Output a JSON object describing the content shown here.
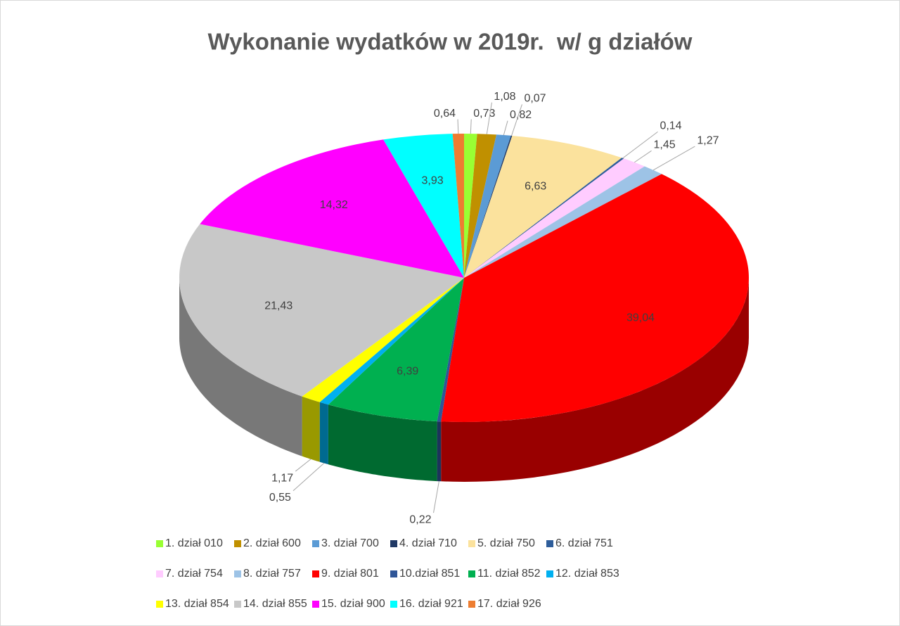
{
  "chart_data": {
    "type": "pie",
    "title": "Wykonanie wydatków w 2019r.  w/ g działów",
    "categories": [
      "1. dział 010",
      "2. dział 600",
      "3. dział 700",
      "4. dział 710",
      "5. dział 750",
      "6. dział 751",
      "7. dział 754",
      "8. dział 757",
      "9. dział 801",
      "10.dział 851",
      "11. dział 852",
      "12. dział 853",
      "13. dział 854",
      "14. dział 855",
      "15. dział 900",
      "16. dział 921",
      "17. dział 926"
    ],
    "values": [
      0.73,
      1.08,
      0.82,
      0.07,
      6.63,
      0.14,
      1.45,
      1.27,
      39.04,
      0.22,
      6.39,
      0.55,
      1.17,
      21.43,
      14.32,
      3.93,
      0.64
    ],
    "value_labels": [
      "0,73",
      "1,08",
      "0,82",
      "0,07",
      "6,63",
      "0,14",
      "1,45",
      "1,27",
      "39,04",
      "0,22",
      "6,39",
      "0,55",
      "1,17",
      "21,43",
      "14,32",
      "3,93",
      "0,64"
    ],
    "colors": [
      "#99ff33",
      "#c09000",
      "#5b9bd5",
      "#1f3864",
      "#fbe29d",
      "#2e5d9a",
      "#ffccff",
      "#9dc3e6",
      "#ff0000",
      "#2f5597",
      "#00b050",
      "#00b0f0",
      "#ffff00",
      "#c8c8c8",
      "#ff00ff",
      "#00ffff",
      "#ed7d31"
    ],
    "legend": "bottom"
  }
}
